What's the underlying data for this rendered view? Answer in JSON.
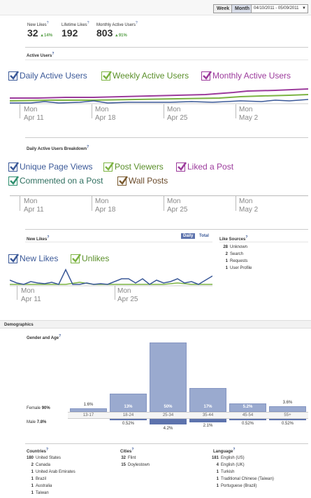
{
  "toolbar": {
    "week": "Week",
    "month": "Month",
    "date_range": "04/10/2011 - 05/09/2011"
  },
  "summary": {
    "new_likes": {
      "label": "New Likes",
      "value": "32",
      "change": "14%"
    },
    "lifetime_likes": {
      "label": "Lifetime Likes",
      "value": "192"
    },
    "monthly_active": {
      "label": "Monthly Active Users",
      "value": "803",
      "change": "91%"
    }
  },
  "active_users": {
    "title": "Active Users",
    "legend": [
      {
        "label": "Daily Active Users",
        "color": "#3b5998"
      },
      {
        "label": "Weekly Active Users",
        "color": "#7cb342"
      },
      {
        "label": "Monthly Active Users",
        "color": "#9c3b9c"
      }
    ],
    "axis": [
      {
        "day": "Mon",
        "date": "Apr 11"
      },
      {
        "day": "Mon",
        "date": "Apr 18"
      },
      {
        "day": "Mon",
        "date": "Apr 25"
      },
      {
        "day": "Mon",
        "date": "May 2"
      }
    ]
  },
  "dau_breakdown": {
    "title": "Daily Active Users Breakdown",
    "legend": [
      {
        "label": "Unique Page Views",
        "color": "#3b5998"
      },
      {
        "label": "Post Viewers",
        "color": "#7cb342"
      },
      {
        "label": "Liked a Post",
        "color": "#9c3b9c"
      },
      {
        "label": "Commented on a Post",
        "color": "#2f8f6f"
      },
      {
        "label": "Wall Posts",
        "color": "#7a5a2f"
      }
    ],
    "axis": [
      {
        "day": "Mon",
        "date": "Apr 11"
      },
      {
        "day": "Mon",
        "date": "Apr 18"
      },
      {
        "day": "Mon",
        "date": "Apr 25"
      },
      {
        "day": "Mon",
        "date": "May 2"
      }
    ]
  },
  "new_likes": {
    "title": "New Likes",
    "toggle_daily": "Daily",
    "toggle_total": "Total",
    "legend": [
      {
        "label": "New Likes",
        "color": "#3b5998"
      },
      {
        "label": "Unlikes",
        "color": "#7cb342"
      }
    ],
    "axis": [
      {
        "day": "Mon",
        "date": "Apr 11"
      },
      {
        "day": "Mon",
        "date": "Apr 25"
      }
    ],
    "sources_title": "Like Sources",
    "sources": [
      {
        "count": "28",
        "label": "Unknown"
      },
      {
        "count": "2",
        "label": "Search"
      },
      {
        "count": "1",
        "label": "Requests"
      },
      {
        "count": "1",
        "label": "User Profile"
      }
    ]
  },
  "demographics": {
    "title": "Demographics",
    "gender_age_title": "Gender and Age",
    "female_label": "Female",
    "female_pct": "90%",
    "male_label": "Male",
    "male_pct": "7.8%",
    "age_groups": [
      {
        "range": "13-17",
        "female": "1.6%",
        "male": ""
      },
      {
        "range": "18-24",
        "female": "13%",
        "male": "0.52%"
      },
      {
        "range": "25-34",
        "female": "50%",
        "male": "4.2%"
      },
      {
        "range": "35-44",
        "female": "17%",
        "male": "2.1%"
      },
      {
        "range": "45-54",
        "female": "5.2%",
        "male": "0.52%"
      },
      {
        "range": "55+",
        "female": "3.6%",
        "male": "0.52%"
      }
    ],
    "countries_title": "Countries",
    "countries": [
      {
        "count": "180",
        "label": "United States"
      },
      {
        "count": "2",
        "label": "Canada"
      },
      {
        "count": "1",
        "label": "United Arab Emirates"
      },
      {
        "count": "1",
        "label": "Brazil"
      },
      {
        "count": "1",
        "label": "Australia"
      },
      {
        "count": "1",
        "label": "Taiwan"
      }
    ],
    "cities_title": "Cities",
    "cities": [
      {
        "count": "32",
        "label": "Flint"
      },
      {
        "count": "15",
        "label": "Doylestown"
      }
    ],
    "language_title": "Language",
    "languages": [
      {
        "count": "181",
        "label": "English (US)"
      },
      {
        "count": "4",
        "label": "English (UK)"
      },
      {
        "count": "1",
        "label": "Turkish"
      },
      {
        "count": "1",
        "label": "Traditional Chinese (Taiwan)"
      },
      {
        "count": "1",
        "label": "Portuguese (Brazil)"
      }
    ]
  },
  "help_mark": "?"
}
